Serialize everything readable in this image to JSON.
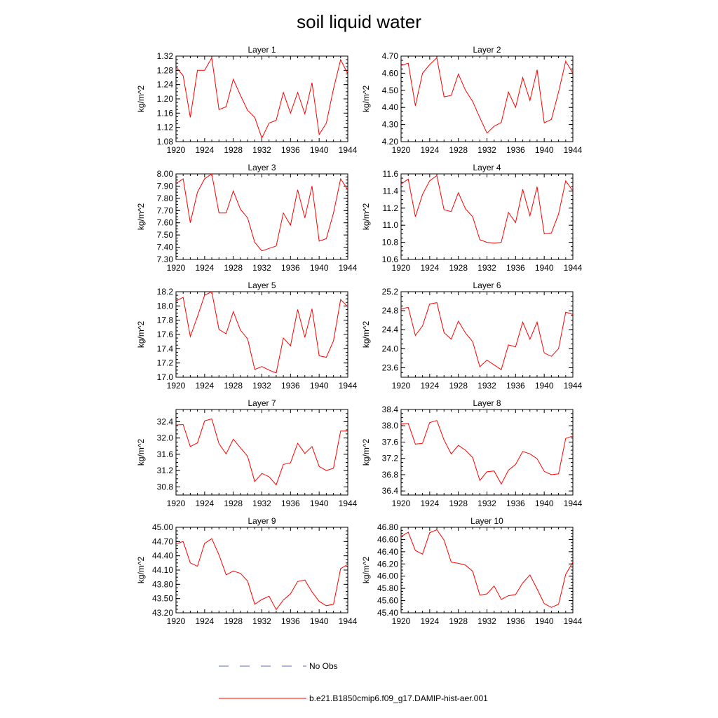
{
  "title": "soil liquid water",
  "colors": {
    "model": "#ff0000",
    "obs": "#5b6bbf",
    "axis": "#000000"
  },
  "chart_data": [
    {
      "type": "line",
      "title": "Layer 1",
      "ylabel": "kg/m^2",
      "x": [
        1920,
        1921,
        1922,
        1923,
        1924,
        1925,
        1926,
        1927,
        1928,
        1929,
        1930,
        1931,
        1932,
        1933,
        1934,
        1935,
        1936,
        1937,
        1938,
        1939,
        1940,
        1941,
        1942,
        1943,
        1944
      ],
      "xlim": [
        1920,
        1944
      ],
      "xticks": [
        "1920",
        "1924",
        "1928",
        "1932",
        "1936",
        "1940",
        "1944"
      ],
      "ylim": [
        1.08,
        1.32
      ],
      "yticks": [
        "1.08",
        "1.12",
        "1.16",
        "1.20",
        "1.24",
        "1.28",
        "1.32"
      ],
      "series": [
        {
          "name": "b.e21.B1850cmip6.f09_g17.DAMIP-hist-aer.001",
          "values": [
            1.29,
            1.265,
            1.148,
            1.28,
            1.28,
            1.315,
            1.17,
            1.178,
            1.255,
            1.21,
            1.168,
            1.148,
            1.09,
            1.132,
            1.14,
            1.218,
            1.16,
            1.218,
            1.158,
            1.245,
            1.1,
            1.132,
            1.228,
            1.31,
            1.27
          ]
        }
      ]
    },
    {
      "type": "line",
      "title": "Layer 2",
      "ylabel": "kg/m^2",
      "x": [
        1920,
        1921,
        1922,
        1923,
        1924,
        1925,
        1926,
        1927,
        1928,
        1929,
        1930,
        1931,
        1932,
        1933,
        1934,
        1935,
        1936,
        1937,
        1938,
        1939,
        1940,
        1941,
        1942,
        1943,
        1944
      ],
      "xlim": [
        1920,
        1944
      ],
      "xticks": [
        "1920",
        "1924",
        "1928",
        "1932",
        "1936",
        "1940",
        "1944"
      ],
      "ylim": [
        4.2,
        4.7
      ],
      "yticks": [
        "4.20",
        "4.30",
        "4.40",
        "4.50",
        "4.60",
        "4.70"
      ],
      "series": [
        {
          "name": "b.e21.B1850cmip6.f09_g17.DAMIP-hist-aer.001",
          "values": [
            4.645,
            4.658,
            4.41,
            4.6,
            4.65,
            4.69,
            4.462,
            4.47,
            4.595,
            4.5,
            4.435,
            4.34,
            4.25,
            4.29,
            4.312,
            4.49,
            4.4,
            4.575,
            4.44,
            4.62,
            4.31,
            4.33,
            4.49,
            4.67,
            4.6
          ]
        }
      ]
    },
    {
      "type": "line",
      "title": "Layer 3",
      "ylabel": "kg/m^2",
      "x": [
        1920,
        1921,
        1922,
        1923,
        1924,
        1925,
        1926,
        1927,
        1928,
        1929,
        1930,
        1931,
        1932,
        1933,
        1934,
        1935,
        1936,
        1937,
        1938,
        1939,
        1940,
        1941,
        1942,
        1943,
        1944
      ],
      "xlim": [
        1920,
        1944
      ],
      "xticks": [
        "1920",
        "1924",
        "1928",
        "1932",
        "1936",
        "1940",
        "1944"
      ],
      "ylim": [
        7.3,
        8.0
      ],
      "yticks": [
        "7.30",
        "7.40",
        "7.50",
        "7.60",
        "7.70",
        "7.80",
        "7.90",
        "8.00"
      ],
      "series": [
        {
          "name": "b.e21.B1850cmip6.f09_g17.DAMIP-hist-aer.001",
          "values": [
            7.92,
            7.96,
            7.6,
            7.85,
            7.96,
            8.0,
            7.68,
            7.68,
            7.86,
            7.71,
            7.64,
            7.44,
            7.37,
            7.39,
            7.41,
            7.68,
            7.58,
            7.87,
            7.64,
            7.9,
            7.45,
            7.47,
            7.68,
            7.96,
            7.87
          ]
        }
      ]
    },
    {
      "type": "line",
      "title": "Layer 4",
      "ylabel": "kg/m^2",
      "x": [
        1920,
        1921,
        1922,
        1923,
        1924,
        1925,
        1926,
        1927,
        1928,
        1929,
        1930,
        1931,
        1932,
        1933,
        1934,
        1935,
        1936,
        1937,
        1938,
        1939,
        1940,
        1941,
        1942,
        1943,
        1944
      ],
      "xlim": [
        1920,
        1944
      ],
      "xticks": [
        "1920",
        "1924",
        "1928",
        "1932",
        "1936",
        "1940",
        "1944"
      ],
      "ylim": [
        10.6,
        11.6
      ],
      "yticks": [
        "10.6",
        "10.8",
        "11.0",
        "11.2",
        "11.4",
        "11.6"
      ],
      "series": [
        {
          "name": "b.e21.B1850cmip6.f09_g17.DAMIP-hist-aer.001",
          "values": [
            11.48,
            11.54,
            11.1,
            11.36,
            11.52,
            11.58,
            11.18,
            11.16,
            11.38,
            11.19,
            11.1,
            10.83,
            10.8,
            10.79,
            10.8,
            11.15,
            11.03,
            11.42,
            11.11,
            11.45,
            10.9,
            10.91,
            11.13,
            11.52,
            11.4
          ]
        }
      ]
    },
    {
      "type": "line",
      "title": "Layer 5",
      "ylabel": "kg/m^2",
      "x": [
        1920,
        1921,
        1922,
        1923,
        1924,
        1925,
        1926,
        1927,
        1928,
        1929,
        1930,
        1931,
        1932,
        1933,
        1934,
        1935,
        1936,
        1937,
        1938,
        1939,
        1940,
        1941,
        1942,
        1943,
        1944
      ],
      "xlim": [
        1920,
        1944
      ],
      "xticks": [
        "1920",
        "1924",
        "1928",
        "1932",
        "1936",
        "1940",
        "1944"
      ],
      "ylim": [
        17.0,
        18.2
      ],
      "yticks": [
        "17.0",
        "17.2",
        "17.4",
        "17.6",
        "17.8",
        "18.0",
        "18.2"
      ],
      "series": [
        {
          "name": "b.e21.B1850cmip6.f09_g17.DAMIP-hist-aer.001",
          "values": [
            18.07,
            18.12,
            17.57,
            17.85,
            18.15,
            18.2,
            17.67,
            17.61,
            17.92,
            17.66,
            17.54,
            17.11,
            17.15,
            17.1,
            17.06,
            17.55,
            17.44,
            17.95,
            17.56,
            17.96,
            17.3,
            17.28,
            17.51,
            18.09,
            17.99
          ]
        }
      ]
    },
    {
      "type": "line",
      "title": "Layer 6",
      "ylabel": "kg/m^2",
      "x": [
        1920,
        1921,
        1922,
        1923,
        1924,
        1925,
        1926,
        1927,
        1928,
        1929,
        1930,
        1931,
        1932,
        1933,
        1934,
        1935,
        1936,
        1937,
        1938,
        1939,
        1940,
        1941,
        1942,
        1943,
        1944
      ],
      "xlim": [
        1920,
        1944
      ],
      "xticks": [
        "1920",
        "1924",
        "1928",
        "1932",
        "1936",
        "1940",
        "1944"
      ],
      "ylim": [
        23.4,
        25.2
      ],
      "yticks": [
        "23.6",
        "24.0",
        "24.4",
        "24.8",
        "25.2"
      ],
      "series": [
        {
          "name": "b.e21.B1850cmip6.f09_g17.DAMIP-hist-aer.001",
          "values": [
            24.84,
            24.87,
            24.28,
            24.48,
            24.94,
            24.97,
            24.34,
            24.2,
            24.58,
            24.33,
            24.15,
            23.62,
            23.76,
            23.66,
            23.56,
            24.08,
            24.04,
            24.56,
            24.2,
            24.56,
            23.91,
            23.84,
            24.0,
            24.77,
            24.72
          ]
        }
      ]
    },
    {
      "type": "line",
      "title": "Layer 7",
      "ylabel": "kg/m^2",
      "x": [
        1920,
        1921,
        1922,
        1923,
        1924,
        1925,
        1926,
        1927,
        1928,
        1929,
        1930,
        1931,
        1932,
        1933,
        1934,
        1935,
        1936,
        1937,
        1938,
        1939,
        1940,
        1941,
        1942,
        1943,
        1944
      ],
      "xlim": [
        1920,
        1944
      ],
      "xticks": [
        "1920",
        "1924",
        "1928",
        "1932",
        "1936",
        "1940",
        "1944"
      ],
      "ylim": [
        30.6,
        32.7
      ],
      "yticks": [
        "30.8",
        "31.2",
        "31.6",
        "32.0",
        "32.4"
      ],
      "series": [
        {
          "name": "b.e21.B1850cmip6.f09_g17.DAMIP-hist-aer.001",
          "values": [
            32.32,
            32.33,
            31.79,
            31.88,
            32.42,
            32.47,
            31.86,
            31.61,
            31.97,
            31.76,
            31.55,
            30.93,
            31.13,
            31.05,
            30.85,
            31.35,
            31.39,
            31.87,
            31.62,
            31.79,
            31.3,
            31.2,
            31.26,
            32.17,
            32.17
          ]
        }
      ]
    },
    {
      "type": "line",
      "title": "Layer 8",
      "ylabel": "kg/m^2",
      "x": [
        1920,
        1921,
        1922,
        1923,
        1924,
        1925,
        1926,
        1927,
        1928,
        1929,
        1930,
        1931,
        1932,
        1933,
        1934,
        1935,
        1936,
        1937,
        1938,
        1939,
        1940,
        1941,
        1942,
        1943,
        1944
      ],
      "xlim": [
        1920,
        1944
      ],
      "xticks": [
        "1920",
        "1924",
        "1928",
        "1932",
        "1936",
        "1940",
        "1944"
      ],
      "ylim": [
        36.3,
        38.4
      ],
      "yticks": [
        "36.4",
        "36.8",
        "37.2",
        "37.6",
        "38.0",
        "38.4"
      ],
      "series": [
        {
          "name": "b.e21.B1850cmip6.f09_g17.DAMIP-hist-aer.001",
          "values": [
            38.04,
            38.06,
            37.55,
            37.57,
            38.08,
            38.13,
            37.65,
            37.31,
            37.52,
            37.4,
            37.22,
            36.66,
            36.87,
            36.89,
            36.57,
            36.91,
            37.05,
            37.37,
            37.31,
            37.19,
            36.88,
            36.8,
            36.82,
            37.69,
            37.75
          ]
        }
      ]
    },
    {
      "type": "line",
      "title": "Layer 9",
      "ylabel": "kg/m^2",
      "x": [
        1920,
        1921,
        1922,
        1923,
        1924,
        1925,
        1926,
        1927,
        1928,
        1929,
        1930,
        1931,
        1932,
        1933,
        1934,
        1935,
        1936,
        1937,
        1938,
        1939,
        1940,
        1941,
        1942,
        1943,
        1944
      ],
      "xlim": [
        1920,
        1944
      ],
      "xticks": [
        "1920",
        "1924",
        "1928",
        "1932",
        "1936",
        "1940",
        "1944"
      ],
      "ylim": [
        43.2,
        45.0
      ],
      "yticks": [
        "43.20",
        "43.50",
        "43.80",
        "44.10",
        "44.40",
        "44.70",
        "45.00"
      ],
      "series": [
        {
          "name": "b.e21.B1850cmip6.f09_g17.DAMIP-hist-aer.001",
          "values": [
            44.65,
            44.7,
            44.25,
            44.18,
            44.66,
            44.76,
            44.42,
            44.0,
            44.08,
            44.03,
            43.87,
            43.38,
            43.48,
            43.55,
            43.27,
            43.47,
            43.6,
            43.86,
            43.89,
            43.64,
            43.44,
            43.35,
            43.38,
            44.13,
            44.22
          ]
        }
      ]
    },
    {
      "type": "line",
      "title": "Layer 10",
      "ylabel": "kg/m^2",
      "x": [
        1920,
        1921,
        1922,
        1923,
        1924,
        1925,
        1926,
        1927,
        1928,
        1929,
        1930,
        1931,
        1932,
        1933,
        1934,
        1935,
        1936,
        1937,
        1938,
        1939,
        1940,
        1941,
        1942,
        1943,
        1944
      ],
      "xlim": [
        1920,
        1944
      ],
      "xticks": [
        "1920",
        "1924",
        "1928",
        "1932",
        "1936",
        "1940",
        "1944"
      ],
      "ylim": [
        45.4,
        46.8
      ],
      "yticks": [
        "45.40",
        "45.60",
        "45.80",
        "46.00",
        "46.20",
        "46.40",
        "46.60",
        "46.80"
      ],
      "series": [
        {
          "name": "b.e21.B1850cmip6.f09_g17.DAMIP-hist-aer.001",
          "values": [
            46.65,
            46.72,
            46.42,
            46.36,
            46.71,
            46.76,
            46.59,
            46.23,
            46.21,
            46.18,
            46.08,
            45.69,
            45.71,
            45.84,
            45.62,
            45.68,
            45.7,
            45.89,
            46.02,
            45.79,
            45.55,
            45.49,
            45.54,
            46.03,
            46.23
          ]
        }
      ]
    }
  ],
  "legend": [
    {
      "label": "No Obs",
      "style": "dashed"
    },
    {
      "label": "b.e21.B1850cmip6.f09_g17.DAMIP-hist-aer.001",
      "style": "solid"
    }
  ]
}
